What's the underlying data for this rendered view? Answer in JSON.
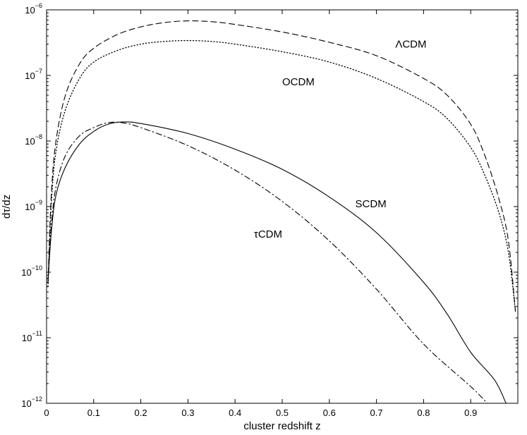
{
  "chart_data": {
    "type": "line",
    "title": "",
    "xlabel": "cluster redshift z",
    "ylabel": "dτ/dz",
    "xlim": [
      0,
      1
    ],
    "ylim": [
      1e-12,
      1e-06
    ],
    "yscale": "log",
    "grid": false,
    "xticks": [
      "0",
      "0.1",
      "0.2",
      "0.3",
      "0.4",
      "0.5",
      "0.6",
      "0.7",
      "0.8",
      "0.9"
    ],
    "yticks": [
      {
        "base": "10",
        "exp": "−12"
      },
      {
        "base": "10",
        "exp": "−11"
      },
      {
        "base": "10",
        "exp": "−10"
      },
      {
        "base": "10",
        "exp": "−9"
      },
      {
        "base": "10",
        "exp": "−8"
      },
      {
        "base": "10",
        "exp": "−7"
      },
      {
        "base": "10",
        "exp": "−6"
      }
    ],
    "series": [
      {
        "name": "ΛCDM",
        "line_style": "dashed",
        "label_at": [
          0.74,
          3e-07
        ],
        "points": [
          [
            0.003,
            7e-11
          ],
          [
            0.01,
            1.5e-09
          ],
          [
            0.02,
            1e-08
          ],
          [
            0.04,
            5e-08
          ],
          [
            0.07,
            1.5e-07
          ],
          [
            0.1,
            2.6e-07
          ],
          [
            0.15,
            4.2e-07
          ],
          [
            0.2,
            5.5e-07
          ],
          [
            0.25,
            6.4e-07
          ],
          [
            0.3,
            6.8e-07
          ],
          [
            0.35,
            6.6e-07
          ],
          [
            0.4,
            6e-07
          ],
          [
            0.5,
            4.6e-07
          ],
          [
            0.6,
            3.2e-07
          ],
          [
            0.7,
            2e-07
          ],
          [
            0.8,
            9e-08
          ],
          [
            0.85,
            5e-08
          ],
          [
            0.9,
            1.8e-08
          ],
          [
            0.93,
            6e-09
          ],
          [
            0.96,
            1.3e-09
          ],
          [
            0.98,
            3e-10
          ],
          [
            0.995,
            2.5e-11
          ]
        ]
      },
      {
        "name": "OCDM",
        "line_style": "dotted",
        "label_at": [
          0.5,
          8e-08
        ],
        "points": [
          [
            0.003,
            6e-11
          ],
          [
            0.01,
            1.1e-09
          ],
          [
            0.02,
            7e-09
          ],
          [
            0.04,
            3e-08
          ],
          [
            0.07,
            9e-08
          ],
          [
            0.1,
            1.6e-07
          ],
          [
            0.15,
            2.4e-07
          ],
          [
            0.2,
            3e-07
          ],
          [
            0.25,
            3.3e-07
          ],
          [
            0.3,
            3.4e-07
          ],
          [
            0.35,
            3.3e-07
          ],
          [
            0.4,
            3e-07
          ],
          [
            0.5,
            2.3e-07
          ],
          [
            0.6,
            1.6e-07
          ],
          [
            0.7,
            9e-08
          ],
          [
            0.8,
            4e-08
          ],
          [
            0.85,
            2.2e-08
          ],
          [
            0.9,
            8e-09
          ],
          [
            0.93,
            3e-09
          ],
          [
            0.96,
            8e-10
          ],
          [
            0.98,
            2e-10
          ],
          [
            0.995,
            2.5e-11
          ]
        ]
      },
      {
        "name": "SCDM",
        "line_style": "solid",
        "label_at": [
          0.655,
          1.1e-09
        ],
        "points": [
          [
            0.003,
            7e-11
          ],
          [
            0.01,
            4e-10
          ],
          [
            0.02,
            1.5e-09
          ],
          [
            0.04,
            4e-09
          ],
          [
            0.07,
            9e-09
          ],
          [
            0.1,
            1.4e-08
          ],
          [
            0.13,
            1.8e-08
          ],
          [
            0.16,
            1.95e-08
          ],
          [
            0.2,
            1.85e-08
          ],
          [
            0.3,
            1.3e-08
          ],
          [
            0.4,
            7.5e-09
          ],
          [
            0.5,
            3.7e-09
          ],
          [
            0.6,
            1.4e-09
          ],
          [
            0.7,
            4e-10
          ],
          [
            0.8,
            7e-11
          ],
          [
            0.85,
            2.3e-11
          ],
          [
            0.9,
            6e-12
          ],
          [
            0.95,
            2.3e-12
          ],
          [
            0.975,
            1e-12
          ]
        ]
      },
      {
        "name": "τCDM",
        "line_style": "dashdot",
        "label_at": [
          0.44,
          3.8e-10
        ],
        "points": [
          [
            0.003,
            7e-11
          ],
          [
            0.01,
            5e-10
          ],
          [
            0.02,
            2e-09
          ],
          [
            0.04,
            6e-09
          ],
          [
            0.07,
            1.2e-08
          ],
          [
            0.1,
            1.6e-08
          ],
          [
            0.13,
            1.9e-08
          ],
          [
            0.16,
            1.9e-08
          ],
          [
            0.2,
            1.6e-08
          ],
          [
            0.3,
            8.5e-09
          ],
          [
            0.4,
            3.6e-09
          ],
          [
            0.5,
            1.2e-09
          ],
          [
            0.6,
            3e-10
          ],
          [
            0.7,
            5.5e-11
          ],
          [
            0.8,
            8e-12
          ],
          [
            0.9,
            1.8e-12
          ],
          [
            0.935,
            1e-12
          ]
        ]
      }
    ]
  }
}
